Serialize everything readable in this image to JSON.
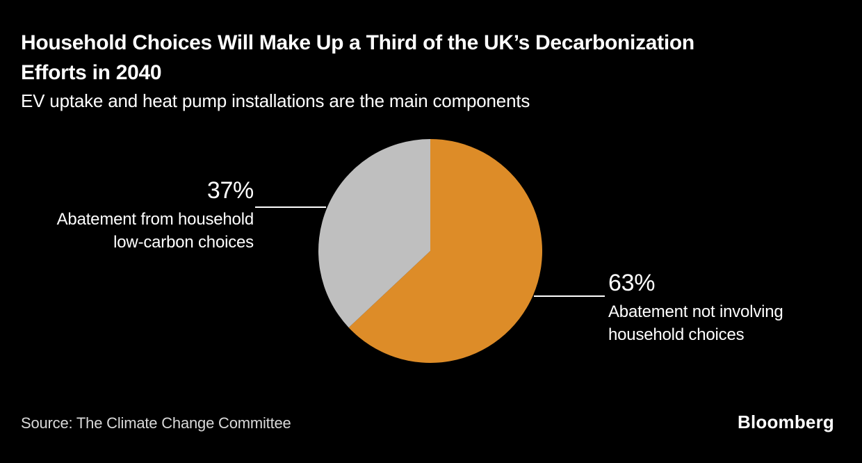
{
  "chart_data": {
    "type": "pie",
    "title": "Household Choices Will Make Up a Third of the UK’s Decarbonization Efforts in 2040",
    "subtitle": "EV uptake and heat pump installations are the main components",
    "slices": [
      {
        "name": "Abatement not involving household choices",
        "value": 63,
        "pct_label": "63%",
        "color": "#DD8C28"
      },
      {
        "name": "Abatement from household low-carbon choices",
        "value": 37,
        "pct_label": "37%",
        "color": "#BFBFBF"
      }
    ],
    "start_angle": "12 o'clock",
    "direction": "clockwise",
    "legend_position": "callout-labels",
    "background_color": "#000000",
    "callout_line_color": "#ffffff"
  },
  "footer": {
    "source": "Source: The Climate Change Committee",
    "brand": "Bloomberg"
  }
}
